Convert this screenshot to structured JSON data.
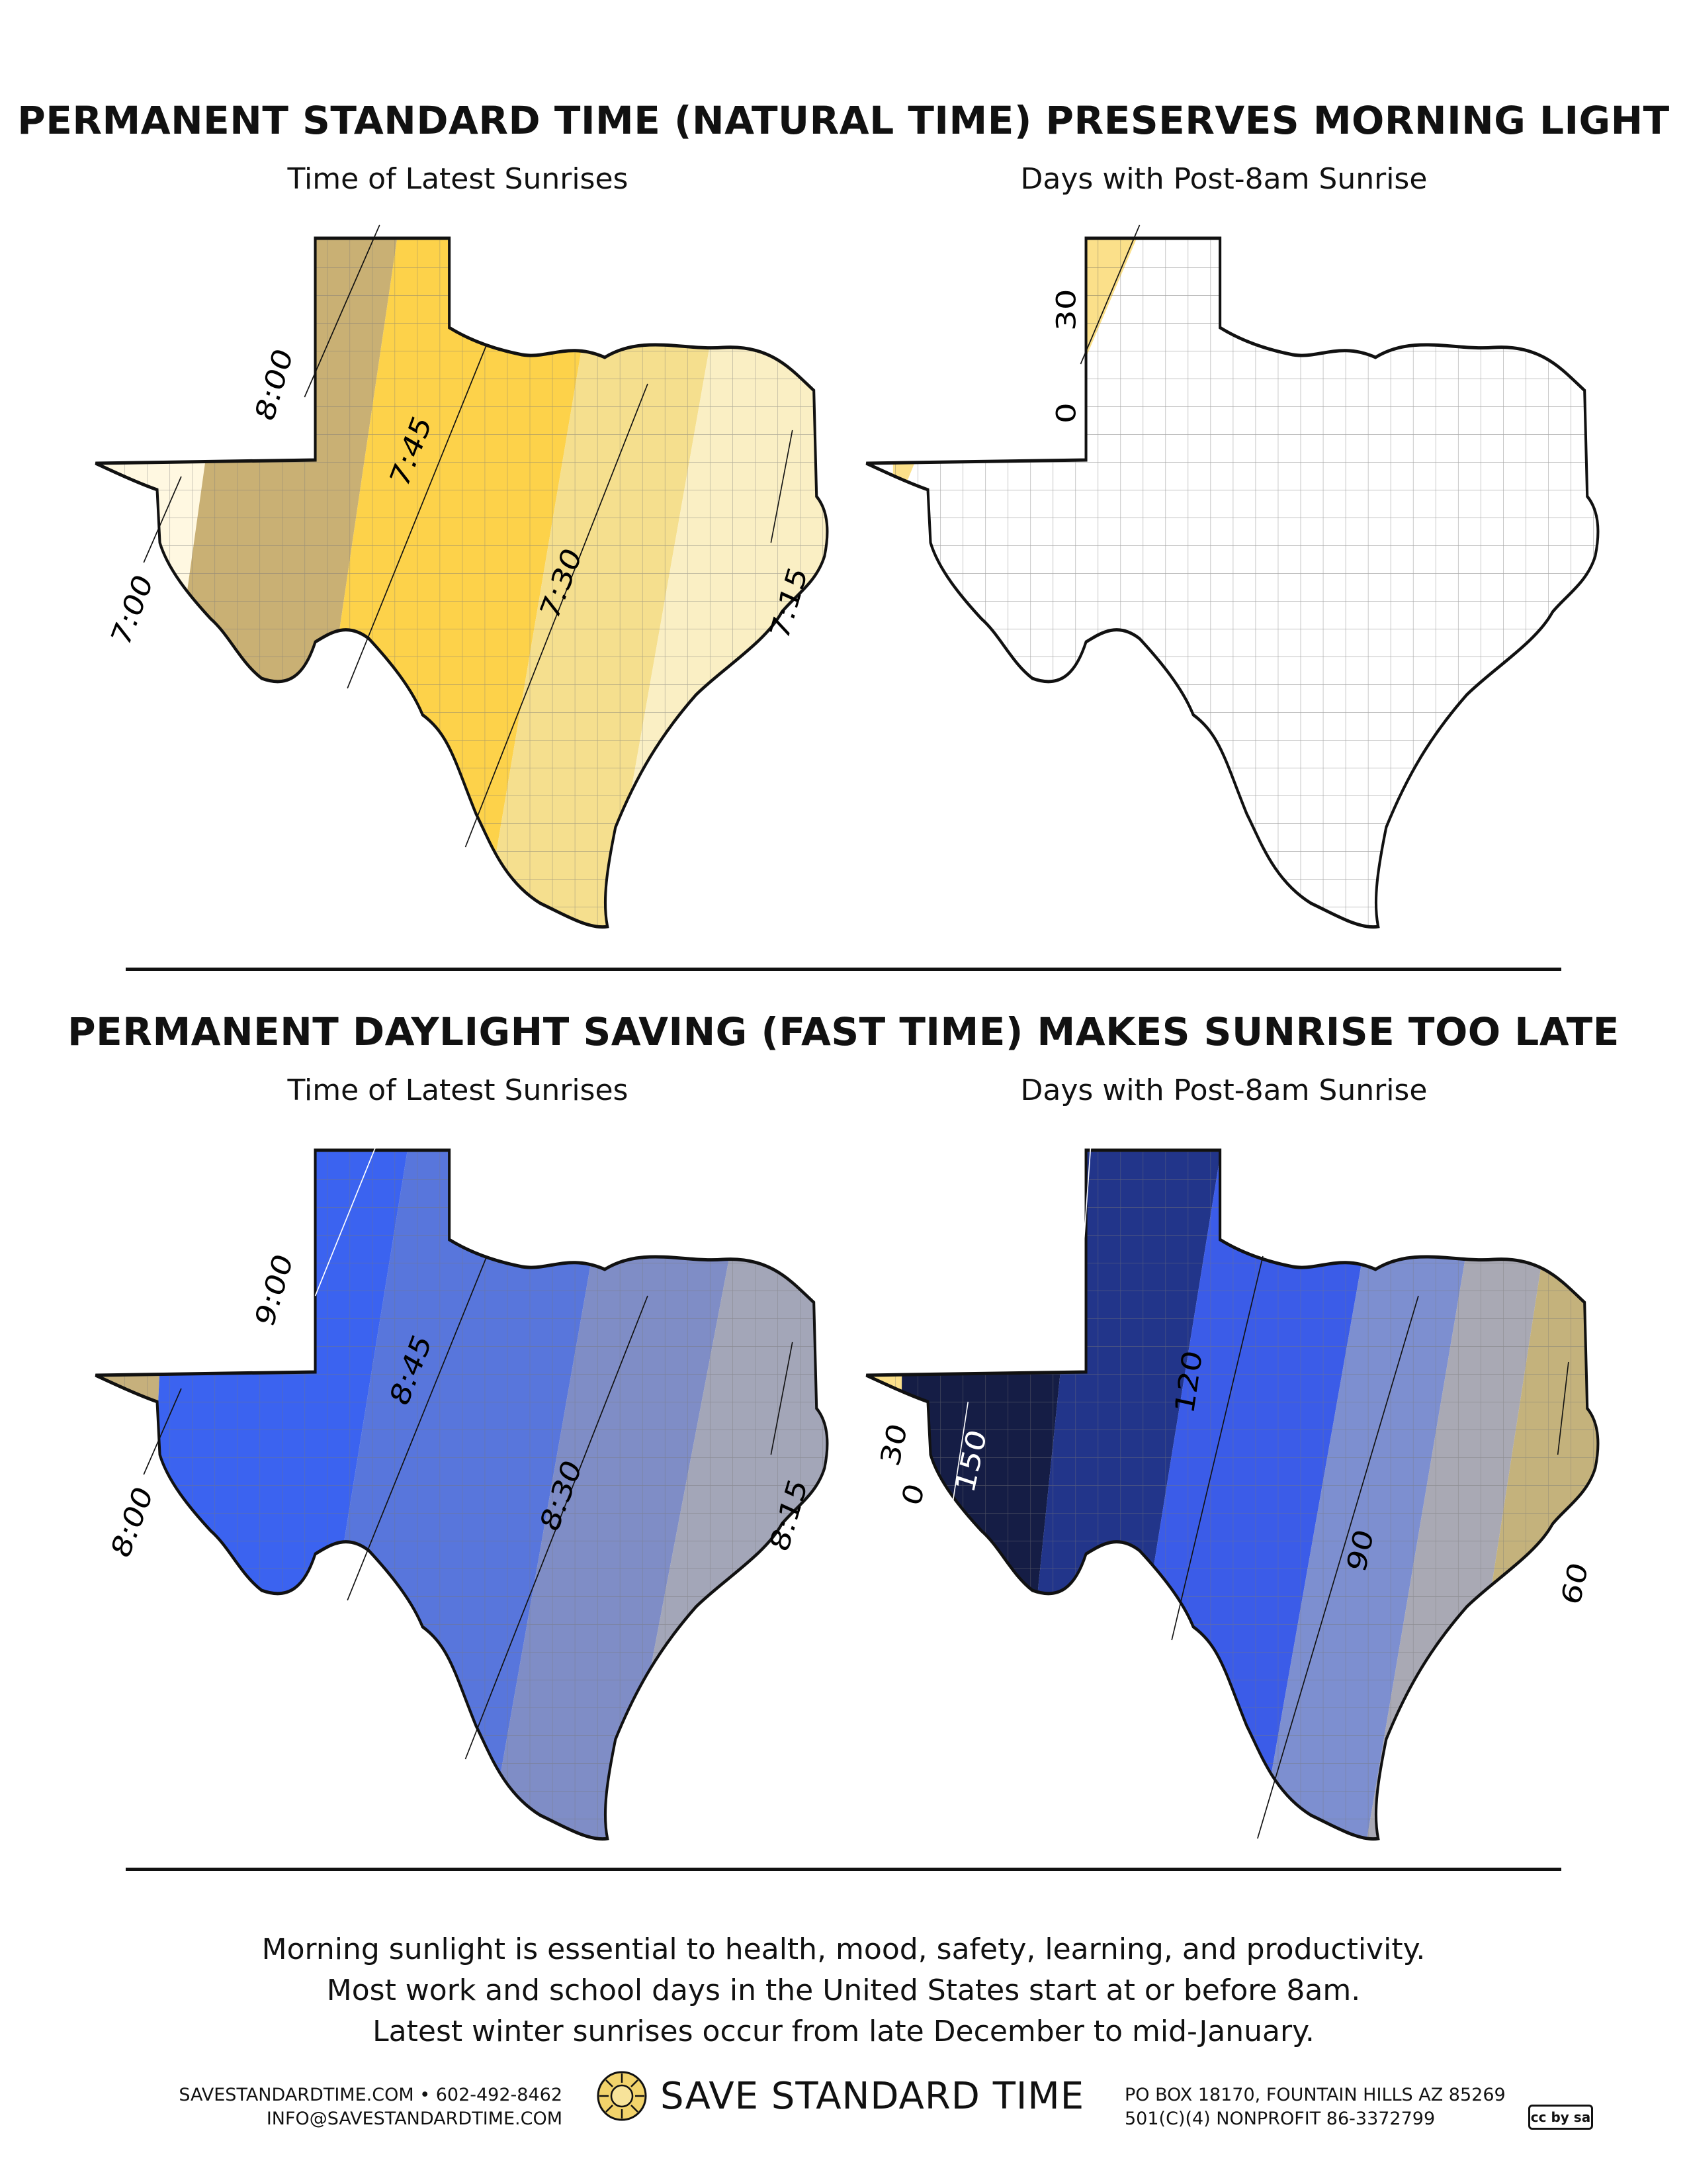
{
  "top_section": {
    "title": "PERMANENT STANDARD TIME (NATURAL TIME) PRESERVES MORNING LIGHT",
    "left_map": {
      "title": "Time of Latest Sunrises",
      "contour_labels": [
        "8:00",
        "7:45",
        "7:30",
        "7:15",
        "7:00"
      ]
    },
    "right_map": {
      "title": "Days with Post-8am Sunrise",
      "contour_labels": [
        "30",
        "0"
      ]
    }
  },
  "bottom_section": {
    "title": "PERMANENT DAYLIGHT SAVING (FAST TIME) MAKES SUNRISE TOO LATE",
    "left_map": {
      "title": "Time of Latest Sunrises",
      "contour_labels": [
        "9:00",
        "8:45",
        "8:30",
        "8:15",
        "8:00"
      ]
    },
    "right_map": {
      "title": "Days with Post-8am Sunrise",
      "contour_labels": [
        "30",
        "0",
        "150",
        "120",
        "90",
        "60"
      ]
    }
  },
  "footer": {
    "lines": [
      "Morning sunlight is essential to health, mood, safety, learning, and productivity.",
      "Most work and school days in the United States start at or before 8am.",
      "Latest winter sunrises occur from late December to mid-January."
    ],
    "contact_left": [
      "SAVESTANDARDTIME.COM • 602-492-8462",
      "INFO@SAVESTANDARDTIME.COM"
    ],
    "brand": "SAVE STANDARD TIME",
    "contact_right": [
      "PO BOX 18170, FOUNTAIN HILLS AZ 85269",
      "501(C)(4) NONPROFIT 86-3372799"
    ],
    "license_badge": "cc by sa"
  },
  "colors": {
    "standard_time": [
      "#fff8e1",
      "#c6b07c",
      "#fdd24a",
      "#f7e6a6"
    ],
    "daylight_saving": [
      "#c6b07c",
      "#3b63f0",
      "#6a84d8",
      "#9aa0b6"
    ],
    "days_dst": [
      "#1a2450",
      "#23368a",
      "#3b5ce8",
      "#7d8fd0",
      "#a9a9b4",
      "#c4b27c"
    ]
  }
}
